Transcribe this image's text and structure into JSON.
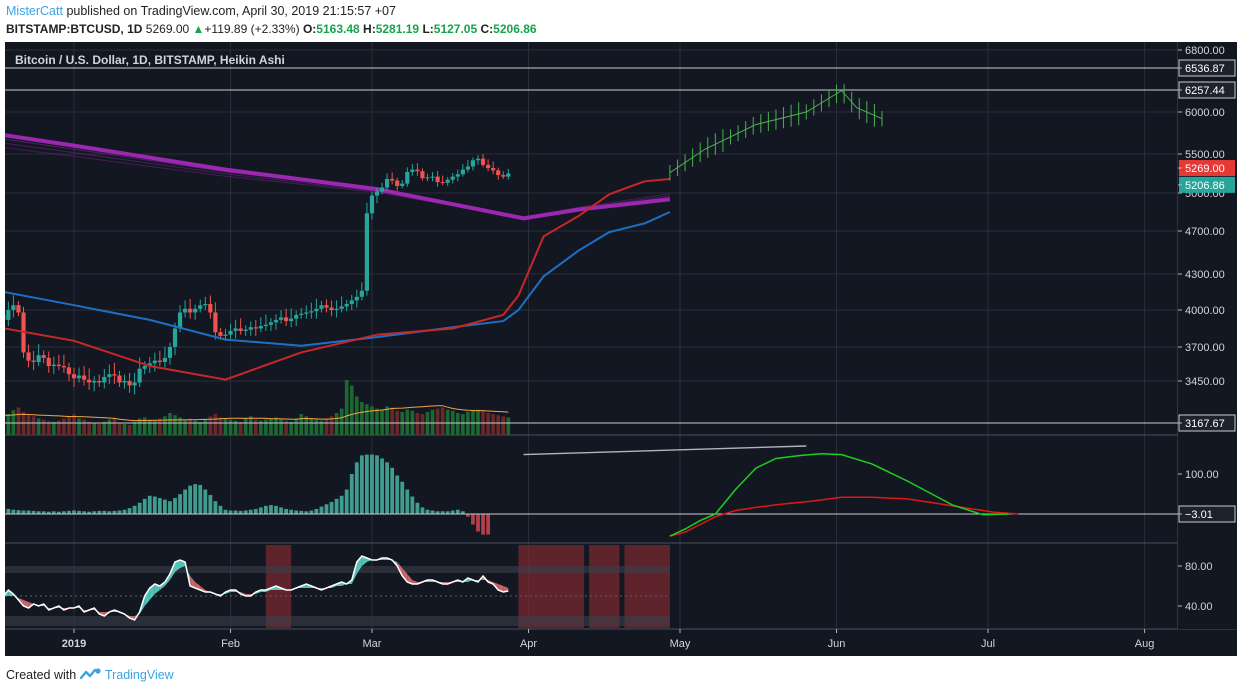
{
  "header": {
    "author": "MisterCatt",
    "published_text": "published on TradingView.com, April 30, 2019 21:15:57 +07",
    "symbol": "BITSTAMP:BTCUSD, 1D",
    "last": "5269.00",
    "change_arrow": "▲",
    "change": "+119.89 (+2.33%)",
    "o_label": "O:",
    "o": "5163.48",
    "h_label": "H:",
    "h": "5281.19",
    "l_label": "L:",
    "l": "5127.05",
    "c_label": "C:",
    "c": "5206.86"
  },
  "footer": {
    "created_with": "Created with",
    "brand": "TradingView",
    "logo_icon": "tradingview-logo-icon"
  },
  "colors": {
    "background": "#131722",
    "grid": "#2a2e39",
    "up": "#26a69a",
    "down": "#ef5350",
    "ma_fast": "#c62828",
    "ma_slow": "#1e6fc4",
    "ma_long": "#9c27b0",
    "projection": "#4caf50",
    "price_tag_last": "#e53935",
    "price_tag_close": "#26a69a"
  },
  "chart_data": [
    {
      "type": "candlestick",
      "title": "Bitcoin / U.S. Dollar, 1D, BITSTAMP, Heikin Ashi",
      "x_ticks": [
        "2019",
        "Feb",
        "Mar",
        "Apr",
        "May",
        "Jun",
        "Jul",
        "Aug"
      ],
      "y_ticks": [
        3450,
        3700,
        4000,
        4300,
        4700,
        5000,
        5500,
        6000,
        6800
      ],
      "y_tick_labels": [
        "3450.00",
        "3700.00",
        "4000.00",
        "4300.00",
        "4700.00",
        "5000.00",
        "5500.00",
        "6000.00",
        "6800.00"
      ],
      "horizontal_levels": [
        {
          "value": 6536.87,
          "label": "6536.87"
        },
        {
          "value": 6257.44,
          "label": "6257.44"
        },
        {
          "value": 3167.67,
          "label": "3167.67"
        }
      ],
      "price_tags": [
        {
          "value": 5269.0,
          "label": "5269.00",
          "kind": "last"
        },
        {
          "value": 5206.86,
          "label": "5206.86",
          "kind": "close"
        }
      ],
      "series": [
        {
          "name": "BTCUSD",
          "style": "heikin-ashi",
          "t_start": -31,
          "close": [
            3620,
            3780,
            3880,
            3920,
            3960,
            3870,
            3920,
            3940,
            3980,
            3780,
            3700,
            3680,
            3700,
            3800,
            3880,
            3930,
            3960,
            3920,
            4000,
            4040,
            3980,
            3660,
            3600,
            3590,
            3640,
            3620,
            3560,
            3570,
            3560,
            3550,
            3500,
            3470,
            3490,
            3460,
            3440,
            3450,
            3440,
            3480,
            3500,
            3490,
            3440,
            3450,
            3420,
            3440,
            3540,
            3560,
            3580,
            3600,
            3590,
            3620,
            3700,
            3850,
            3980,
            4010,
            3980,
            4010,
            4040,
            4050,
            3980,
            3820,
            3790,
            3800,
            3830,
            3850,
            3830,
            3840,
            3860,
            3850,
            3870,
            3880,
            3900,
            3920,
            3940,
            3910,
            3930,
            3960,
            3970,
            3980,
            3990,
            4010,
            4040,
            4020,
            4000,
            4010,
            4030,
            4050,
            4080,
            4110,
            4160,
            4840,
            4980,
            5020,
            5070,
            5180,
            5160,
            5090,
            5120,
            5270,
            5300,
            5280,
            5190,
            5200,
            5210,
            5140,
            5130,
            5170,
            5210,
            5240,
            5300,
            5340,
            5420,
            5440,
            5360,
            5320,
            5290,
            5230,
            5210,
            5250
          ]
        },
        {
          "name": "MA fast",
          "t": [
            -31,
            -15,
            0,
            15,
            30,
            45,
            60,
            75,
            85,
            88,
            93,
            100,
            106,
            113,
            118
          ],
          "values": [
            3650,
            3860,
            3750,
            3560,
            3460,
            3660,
            3800,
            3850,
            3960,
            4120,
            4650,
            4820,
            4990,
            5150,
            5180
          ]
        },
        {
          "name": "MA slow",
          "t": [
            -31,
            -15,
            0,
            15,
            30,
            45,
            60,
            75,
            85,
            88,
            93,
            100,
            106,
            113,
            118
          ],
          "values": [
            4360,
            4160,
            4040,
            3920,
            3760,
            3710,
            3780,
            3860,
            3910,
            4000,
            4280,
            4520,
            4690,
            4760,
            4850
          ]
        },
        {
          "name": "MA long",
          "t": [
            -31,
            0,
            30,
            60,
            89,
            100,
            118
          ],
          "values": [
            5880,
            5600,
            5300,
            5050,
            4800,
            4870,
            4950
          ]
        },
        {
          "name": "Projection",
          "t": [
            118,
            125,
            135,
            145,
            152,
            155,
            160
          ],
          "values": [
            5260,
            5560,
            5850,
            6000,
            6250,
            6050,
            5920
          ]
        },
        {
          "name": "Volume",
          "t_start": -31,
          "values": [
            30,
            38,
            42,
            45,
            40,
            36,
            34,
            30,
            35,
            40,
            44,
            37,
            36,
            34,
            32,
            30,
            28,
            34,
            38,
            45,
            50,
            42,
            36,
            34,
            30,
            28,
            25,
            24,
            26,
            30,
            34,
            38,
            30,
            28,
            24,
            22,
            20,
            24,
            28,
            30,
            22,
            20,
            18,
            24,
            30,
            32,
            28,
            26,
            30,
            34,
            40,
            36,
            32,
            28,
            30,
            26,
            24,
            28,
            34,
            38,
            32,
            30,
            28,
            26,
            24,
            30,
            34,
            28,
            26,
            28,
            30,
            32,
            28,
            26,
            24,
            30,
            38,
            34,
            30,
            28,
            26,
            30,
            34,
            40,
            48,
            100,
            90,
            70,
            60,
            56,
            52,
            48,
            46,
            52,
            50,
            44,
            42,
            46,
            44,
            40,
            38,
            42,
            46,
            48,
            50,
            46,
            44,
            40,
            38,
            42,
            44,
            46,
            44,
            40,
            38,
            36,
            34,
            32
          ]
        }
      ]
    },
    {
      "type": "bar",
      "title": "",
      "y_ticks": [
        100,
        -3.01
      ],
      "y_tick_labels": [
        "100.00",
        "−3.01"
      ],
      "series": [
        {
          "name": "Histogram",
          "t_start": -31,
          "values": [
            80,
            110,
            135,
            150,
            145,
            130,
            112,
            100,
            95,
            86,
            78,
            66,
            60,
            52,
            46,
            40,
            30,
            18,
            10,
            8,
            7,
            6,
            6,
            5,
            4,
            4,
            3,
            4,
            3,
            4,
            5,
            6,
            5,
            4,
            3,
            4,
            5,
            5,
            4,
            5,
            6,
            8,
            12,
            18,
            26,
            36,
            44,
            42,
            38,
            34,
            30,
            38,
            48,
            60,
            70,
            74,
            72,
            60,
            46,
            30,
            18,
            8,
            6,
            6,
            5,
            6,
            8,
            10,
            14,
            18,
            20,
            18,
            14,
            10,
            8,
            6,
            5,
            4,
            6,
            10,
            16,
            22,
            28,
            36,
            44,
            60,
            100,
            130,
            148,
            150,
            150,
            148,
            140,
            130,
            116,
            96,
            80,
            60,
            42,
            26,
            14,
            8,
            6,
            4,
            4,
            4,
            6,
            8,
            4,
            -10,
            -30,
            -48,
            -56,
            -56
          ]
        },
        {
          "name": "Oscillator fast",
          "t": [
            118,
            121,
            124,
            127,
            131,
            135,
            139,
            144,
            148,
            152,
            158,
            165,
            174,
            180,
            185
          ],
          "values": [
            -60,
            -42,
            -20,
            -3.01,
            60,
            115,
            140,
            148,
            152,
            150,
            126,
            82,
            20,
            -5,
            -3.01
          ]
        },
        {
          "name": "Oscillator slow",
          "t": [
            118,
            121,
            124,
            127,
            131,
            135,
            140,
            146,
            152,
            158,
            165,
            171,
            177,
            182,
            187
          ],
          "values": [
            -60,
            -50,
            -30,
            -10,
            6,
            14,
            22,
            30,
            40,
            40,
            36,
            24,
            12,
            2,
            -3.01
          ]
        },
        {
          "name": "Trendline",
          "t": [
            89,
            145
          ],
          "values": [
            150,
            172
          ]
        }
      ]
    },
    {
      "type": "area",
      "title": "",
      "y_ticks": [
        40,
        80
      ],
      "y_tick_labels": [
        "40.00",
        "80.00"
      ],
      "series": [
        {
          "name": "Stoch K",
          "t_start": -31,
          "values": [
            20,
            32,
            42,
            48,
            44,
            46,
            52,
            55,
            52,
            48,
            50,
            50,
            54,
            52,
            48,
            48,
            52,
            50,
            56,
            52,
            46,
            40,
            38,
            42,
            40,
            42,
            36,
            38,
            40,
            36,
            38,
            38,
            40,
            34,
            36,
            38,
            32,
            30,
            34,
            36,
            34,
            32,
            28,
            26,
            34,
            50,
            58,
            62,
            60,
            64,
            72,
            84,
            86,
            84,
            60,
            58,
            56,
            54,
            54,
            52,
            50,
            54,
            56,
            56,
            52,
            50,
            50,
            54,
            56,
            56,
            58,
            60,
            58,
            56,
            56,
            58,
            60,
            62,
            60,
            58,
            56,
            58,
            60,
            62,
            64,
            62,
            66,
            84,
            90,
            88,
            86,
            86,
            88,
            88,
            86,
            80,
            70,
            64,
            62,
            62,
            64,
            66,
            66,
            64,
            62,
            62,
            64,
            66,
            64,
            68,
            66,
            64,
            70,
            64,
            62,
            56,
            54,
            55
          ]
        },
        {
          "name": "Stoch D",
          "t_start": -31,
          "values": [
            26,
            32,
            36,
            40,
            42,
            44,
            46,
            48,
            50,
            50,
            50,
            50,
            50,
            50,
            50,
            50,
            50,
            50,
            50,
            50,
            48,
            46,
            44,
            42,
            40,
            40,
            38,
            38,
            38,
            38,
            38,
            38,
            38,
            36,
            36,
            36,
            34,
            34,
            34,
            34,
            34,
            32,
            30,
            30,
            32,
            40,
            46,
            52,
            56,
            60,
            66,
            74,
            78,
            80,
            70,
            64,
            60,
            56,
            54,
            52,
            52,
            52,
            54,
            54,
            54,
            52,
            52,
            52,
            54,
            54,
            56,
            56,
            56,
            56,
            56,
            58,
            58,
            58,
            58,
            58,
            58,
            58,
            58,
            60,
            60,
            62,
            62,
            72,
            80,
            84,
            86,
            86,
            86,
            86,
            86,
            84,
            78,
            72,
            66,
            64,
            64,
            64,
            64,
            64,
            64,
            64,
            64,
            64,
            64,
            64,
            66,
            66,
            66,
            66,
            64,
            62,
            60,
            58
          ]
        },
        {
          "name": "Upper band",
          "values": [
            80,
            73
          ]
        },
        {
          "name": "Lower band",
          "values": [
            30,
            20
          ]
        }
      ],
      "shaded_periods": [
        [
          38,
          43
        ],
        [
          88,
          101
        ],
        [
          102,
          108
        ],
        [
          109,
          118
        ]
      ]
    }
  ]
}
